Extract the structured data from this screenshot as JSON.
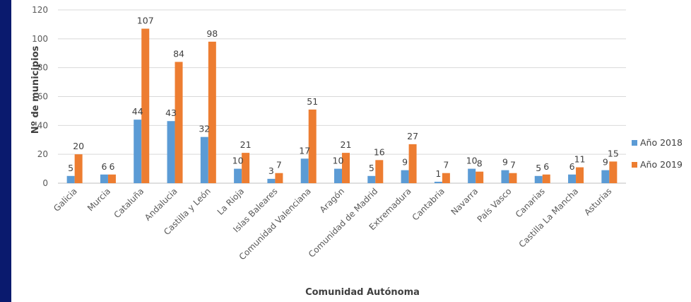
{
  "chart_data": {
    "type": "bar",
    "title": "",
    "xlabel": "Comunidad Autónoma",
    "ylabel": "Nº de municipios",
    "ylim": [
      0,
      120
    ],
    "yticks": [
      0,
      20,
      40,
      60,
      80,
      100,
      120
    ],
    "grid": true,
    "legend_position": "right",
    "categories": [
      "Galicia",
      "Murcia",
      "Cataluña",
      "Andalucia",
      "Castilla y León",
      "La Rioja",
      "Islas Baleares",
      "Comunidad Valenciana",
      "Aragón",
      "Comunidad de Madrid",
      "Extremadura",
      "Cantabria",
      "Navarra",
      "País Vasco",
      "Canarias",
      "Castilla La Mancha",
      "Asturias"
    ],
    "series": [
      {
        "name": "Año 2018",
        "color": "#5b9bd5",
        "values": [
          5,
          6,
          44,
          43,
          32,
          10,
          3,
          17,
          10,
          5,
          9,
          1,
          10,
          9,
          5,
          6,
          9
        ]
      },
      {
        "name": "Año 2019",
        "color": "#ed7d31",
        "values": [
          20,
          6,
          107,
          84,
          98,
          21,
          7,
          51,
          21,
          16,
          27,
          7,
          8,
          7,
          6,
          11,
          15
        ]
      }
    ]
  }
}
